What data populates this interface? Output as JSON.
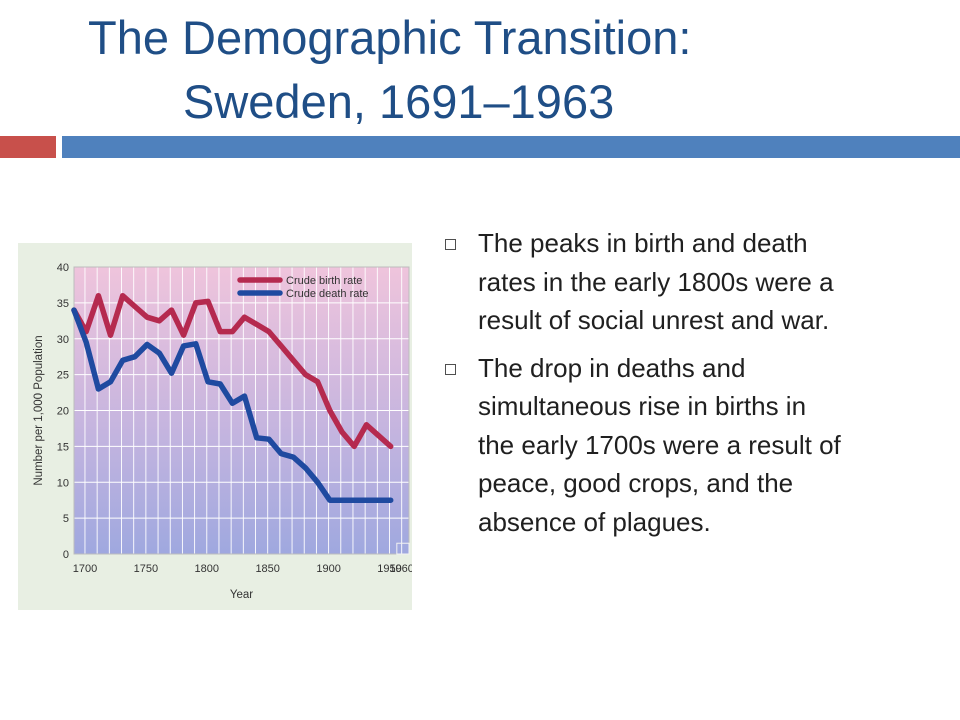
{
  "slide": {
    "title_line1": "The Demographic Transition:",
    "title_line2": "Sweden, 1691–1963",
    "accent_red": "#c8504b",
    "accent_blue": "#4f81bd",
    "title_color": "#1f4e86",
    "bullets": [
      {
        "icon": "square-bullet-icon",
        "text": "The peaks in birth and death rates in the early 1800s were a result of social unrest and war."
      },
      {
        "icon": "square-bullet-icon",
        "text": "The drop in deaths and simultaneous rise in births in the early 1700s were a result of peace, good crops, and the absence of plagues."
      }
    ]
  },
  "chart_data": {
    "type": "line",
    "title": "",
    "xlabel": "Year",
    "ylabel": "Number per 1,000 Population",
    "xlim": [
      1691,
      1966
    ],
    "ylim": [
      0,
      40
    ],
    "x_ticks": [
      1700,
      1750,
      1800,
      1850,
      1900,
      1950,
      1960
    ],
    "x_tick_labels": [
      "1700",
      "1750",
      "1800",
      "1850",
      "1900",
      "1950",
      "1960"
    ],
    "y_ticks": [
      0,
      5,
      10,
      15,
      20,
      25,
      30,
      35,
      40
    ],
    "y_tick_labels": [
      "0",
      "5",
      "10",
      "15",
      "20",
      "25",
      "30",
      "35",
      "40"
    ],
    "grid": true,
    "legend_position": "top-right",
    "series": [
      {
        "name": "Crude birth rate",
        "color": "#b52a4f",
        "x": [
          1691,
          1701,
          1711,
          1721,
          1731,
          1741,
          1751,
          1761,
          1771,
          1781,
          1791,
          1801,
          1811,
          1821,
          1831,
          1841,
          1851,
          1861,
          1871,
          1881,
          1891,
          1901,
          1911,
          1921,
          1931,
          1941,
          1951
        ],
        "y": [
          34,
          31,
          36,
          30.5,
          36,
          34.5,
          33,
          32.5,
          34,
          30.5,
          35,
          35.2,
          31,
          31,
          33,
          32,
          31,
          29,
          27,
          25,
          24,
          20,
          17,
          15,
          18,
          16.5,
          15
        ]
      },
      {
        "name": "Crude death rate",
        "color": "#1f4aa0",
        "x": [
          1691,
          1701,
          1711,
          1721,
          1731,
          1741,
          1751,
          1761,
          1771,
          1781,
          1791,
          1801,
          1811,
          1821,
          1831,
          1841,
          1851,
          1861,
          1871,
          1881,
          1891,
          1901,
          1911,
          1921,
          1931,
          1941,
          1951
        ],
        "y": [
          34,
          29.5,
          23,
          24,
          27,
          27.5,
          29.2,
          28,
          25.2,
          29,
          29.3,
          24,
          23.7,
          21,
          22,
          16.2,
          16,
          14,
          13.5,
          12,
          10,
          7.5,
          7.5,
          7.5,
          7.5,
          7.5,
          7.5
        ]
      }
    ]
  }
}
